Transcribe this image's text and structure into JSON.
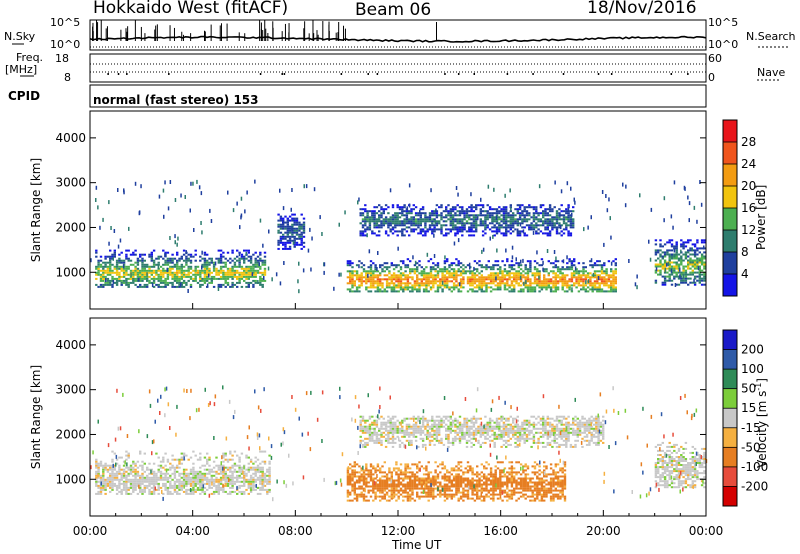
{
  "header": {
    "station": "Hokkaido West (fitACF)",
    "beam": "Beam 06",
    "date": "18/Nov/2016"
  },
  "noise_panel": {
    "left_label": "N.Sky",
    "right_label": "N.Search",
    "scale_top": "10^5",
    "scale_bottom": "10^0"
  },
  "freq_panel": {
    "left_label_1": "Freq.",
    "left_label_2": "[MHz]",
    "left_top": "18",
    "left_bottom": "8",
    "right_label": "Nave",
    "right_top": "60",
    "right_bottom": "0"
  },
  "cpid_panel": {
    "label": "CPID",
    "text": "normal (fast stereo) 153"
  },
  "x_axis": {
    "label": "Time UT",
    "ticks": [
      "00:00",
      "04:00",
      "08:00",
      "12:00",
      "16:00",
      "20:00",
      "00:00"
    ]
  },
  "power_colorbar": {
    "label": "Power [dB]",
    "ticks": [
      "28",
      "24",
      "20",
      "16",
      "12",
      "8",
      "4"
    ],
    "colors": [
      "#e8141a",
      "#f0551d",
      "#f39c12",
      "#f1c40f",
      "#4caf50",
      "#2e7d6e",
      "#1f3f9e",
      "#1414e6"
    ]
  },
  "velocity_colorbar": {
    "label_main": "Velocity [m s",
    "label_sup": "-1",
    "label_end": "]",
    "ticks": [
      "200",
      "100",
      "50",
      "15",
      "-15",
      "-50",
      "-100",
      "-200"
    ],
    "colors": [
      "#1a1ac8",
      "#2e5aa8",
      "#2e8b57",
      "#7ccd3a",
      "#c8c8c8",
      "#f5b041",
      "#e67e22",
      "#e74c3c",
      "#d40000"
    ]
  },
  "chart_data": [
    {
      "type": "heatmap",
      "name": "Power",
      "ylabel": "Slant Range [km]",
      "xlabel": "Time UT",
      "xlim_hours": [
        0,
        24
      ],
      "ylim": [
        180,
        4600
      ],
      "yticks": [
        1000,
        2000,
        3000,
        4000
      ],
      "bands": [
        {
          "t0": 0.2,
          "t1": 6.8,
          "r0": 650,
          "r1": 1500,
          "core_r": 950,
          "core_value": 18
        },
        {
          "t0": 7.3,
          "t1": 8.3,
          "r0": 1500,
          "r1": 2300,
          "core_r": 1900,
          "core_value": 8
        },
        {
          "t0": 10.0,
          "t1": 20.5,
          "r0": 550,
          "r1": 1300,
          "core_r": 800,
          "core_value": 24
        },
        {
          "t0": 10.5,
          "t1": 18.8,
          "r0": 1800,
          "r1": 2500,
          "core_r": 2150,
          "core_value": 10
        },
        {
          "t0": 22.0,
          "t1": 23.9,
          "r0": 700,
          "r1": 1700,
          "core_r": 1100,
          "core_value": 16
        }
      ]
    },
    {
      "type": "heatmap",
      "name": "Velocity",
      "ylabel": "Slant Range [km]",
      "xlabel": "Time UT",
      "xlim_hours": [
        0,
        24
      ],
      "ylim": [
        180,
        4600
      ],
      "yticks": [
        1000,
        2000,
        3000,
        4000
      ],
      "bands": [
        {
          "t0": 0.2,
          "t1": 7.0,
          "r0": 650,
          "r1": 1600,
          "core_r": 950,
          "core_value": 0
        },
        {
          "t0": 10.0,
          "t1": 18.5,
          "r0": 500,
          "r1": 1400,
          "core_r": 850,
          "core_value": -70
        },
        {
          "t0": 10.5,
          "t1": 20.0,
          "r0": 1700,
          "r1": 2400,
          "core_r": 2100,
          "core_value": 0
        },
        {
          "t0": 22.0,
          "t1": 23.9,
          "r0": 800,
          "r1": 1800,
          "core_r": 1200,
          "core_value": 0
        }
      ]
    }
  ]
}
